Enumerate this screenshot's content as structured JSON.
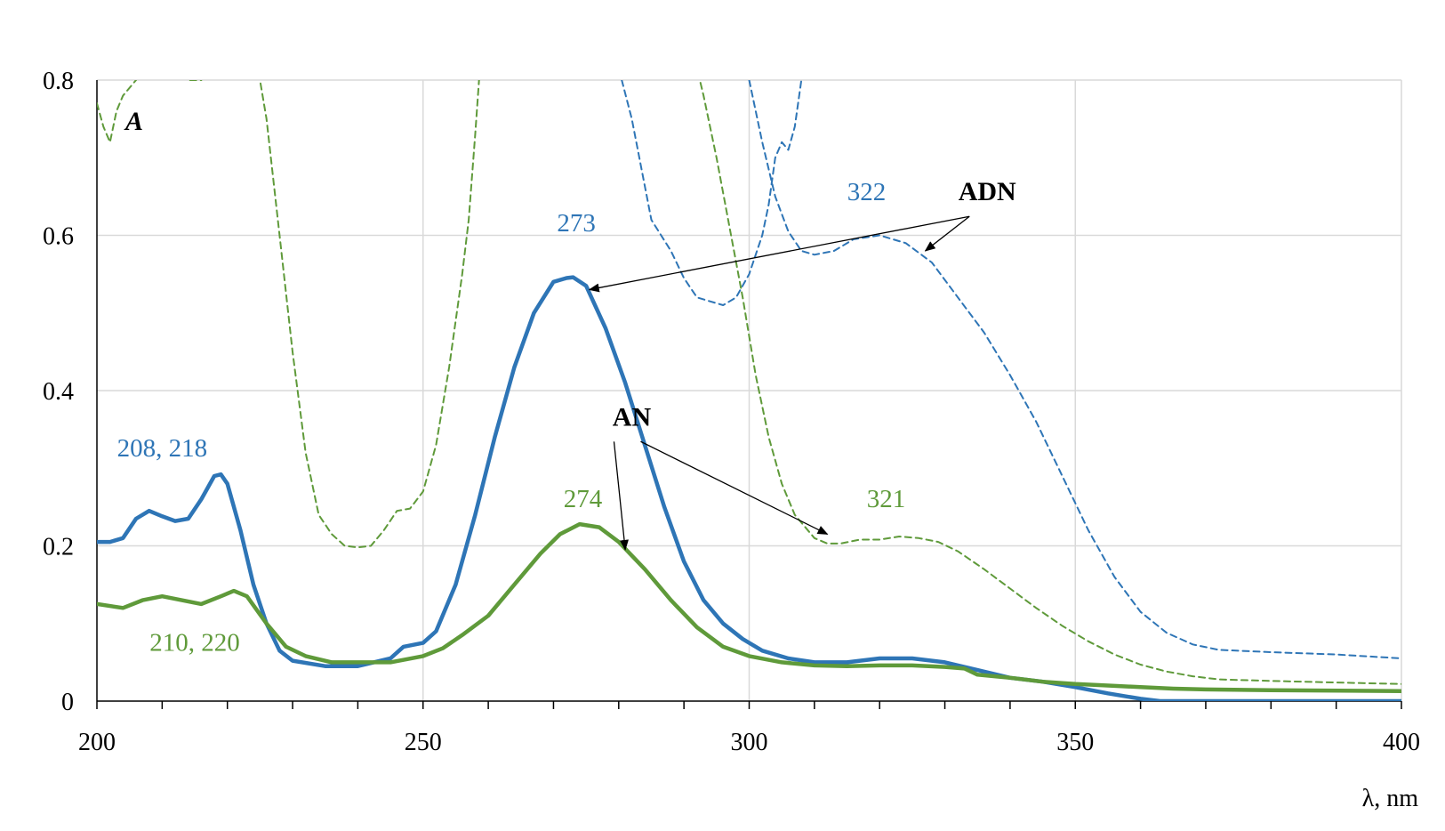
{
  "chart_data": {
    "type": "line",
    "title": "",
    "xlabel": "λ, nm",
    "ylabel": "A",
    "xlim": [
      200,
      400
    ],
    "ylim": [
      0,
      0.8
    ],
    "x_ticks": [
      200,
      250,
      300,
      350,
      400
    ],
    "y_ticks": [
      0,
      0.2,
      0.4,
      0.6,
      0.8
    ],
    "y_tick_labels": [
      "0",
      "0.2",
      "0.4",
      "0.6",
      "0.8"
    ],
    "grid": true,
    "colors": {
      "blue": "#2e75b6",
      "green": "#5f9a3a"
    },
    "series": [
      {
        "color": "#2e75b6",
        "style": "solid",
        "points": [
          [
            200,
            0.205
          ],
          [
            202,
            0.205
          ],
          [
            204,
            0.21
          ],
          [
            206,
            0.235
          ],
          [
            208,
            0.245
          ],
          [
            210,
            0.238
          ],
          [
            212,
            0.232
          ],
          [
            214,
            0.235
          ],
          [
            216,
            0.26
          ],
          [
            218,
            0.29
          ],
          [
            219,
            0.292
          ],
          [
            220,
            0.28
          ],
          [
            222,
            0.22
          ],
          [
            224,
            0.15
          ],
          [
            226,
            0.1
          ],
          [
            228,
            0.065
          ],
          [
            230,
            0.052
          ],
          [
            235,
            0.045
          ],
          [
            240,
            0.045
          ],
          [
            245,
            0.055
          ],
          [
            247,
            0.07
          ],
          [
            250,
            0.075
          ],
          [
            252,
            0.09
          ],
          [
            255,
            0.15
          ],
          [
            258,
            0.24
          ],
          [
            261,
            0.34
          ],
          [
            264,
            0.43
          ],
          [
            267,
            0.5
          ],
          [
            270,
            0.54
          ],
          [
            272,
            0.545
          ],
          [
            273,
            0.546
          ],
          [
            275,
            0.535
          ],
          [
            278,
            0.48
          ],
          [
            281,
            0.41
          ],
          [
            284,
            0.33
          ],
          [
            287,
            0.25
          ],
          [
            290,
            0.18
          ],
          [
            293,
            0.13
          ],
          [
            296,
            0.1
          ],
          [
            299,
            0.08
          ],
          [
            302,
            0.065
          ],
          [
            306,
            0.055
          ],
          [
            310,
            0.05
          ],
          [
            315,
            0.05
          ],
          [
            320,
            0.055
          ],
          [
            325,
            0.055
          ],
          [
            330,
            0.05
          ],
          [
            335,
            0.04
          ],
          [
            340,
            0.03
          ],
          [
            345,
            0.025
          ],
          [
            350,
            0.018
          ],
          [
            355,
            0.01
          ],
          [
            360,
            0.003
          ],
          [
            363,
            0.0
          ],
          [
            400,
            0.0
          ]
        ]
      },
      {
        "color": "#5f9a3a",
        "style": "solid",
        "points": [
          [
            200,
            0.125
          ],
          [
            204,
            0.12
          ],
          [
            207,
            0.13
          ],
          [
            210,
            0.135
          ],
          [
            213,
            0.13
          ],
          [
            216,
            0.125
          ],
          [
            219,
            0.135
          ],
          [
            221,
            0.142
          ],
          [
            223,
            0.135
          ],
          [
            226,
            0.1
          ],
          [
            229,
            0.07
          ],
          [
            232,
            0.058
          ],
          [
            236,
            0.05
          ],
          [
            240,
            0.05
          ],
          [
            245,
            0.05
          ],
          [
            250,
            0.058
          ],
          [
            253,
            0.068
          ],
          [
            256,
            0.085
          ],
          [
            260,
            0.11
          ],
          [
            264,
            0.15
          ],
          [
            268,
            0.19
          ],
          [
            271,
            0.215
          ],
          [
            274,
            0.228
          ],
          [
            277,
            0.224
          ],
          [
            280,
            0.205
          ],
          [
            284,
            0.17
          ],
          [
            288,
            0.13
          ],
          [
            292,
            0.095
          ],
          [
            296,
            0.07
          ],
          [
            300,
            0.058
          ],
          [
            305,
            0.05
          ],
          [
            310,
            0.046
          ],
          [
            315,
            0.045
          ],
          [
            320,
            0.046
          ],
          [
            325,
            0.046
          ],
          [
            330,
            0.044
          ],
          [
            333,
            0.042
          ],
          [
            335,
            0.034
          ],
          [
            340,
            0.03
          ],
          [
            345,
            0.025
          ],
          [
            350,
            0.022
          ],
          [
            355,
            0.02
          ],
          [
            360,
            0.018
          ],
          [
            365,
            0.016
          ],
          [
            370,
            0.015
          ],
          [
            380,
            0.014
          ],
          [
            400,
            0.013
          ]
        ]
      },
      {
        "color": "#2e75b6",
        "style": "dashed",
        "points": [
          [
            278,
            0.88
          ],
          [
            282,
            0.75
          ],
          [
            285,
            0.62
          ],
          [
            288,
            0.58
          ],
          [
            290,
            0.545
          ],
          [
            292,
            0.52
          ],
          [
            294,
            0.515
          ],
          [
            296,
            0.51
          ],
          [
            298,
            0.52
          ],
          [
            300,
            0.55
          ],
          [
            302,
            0.6
          ],
          [
            303,
            0.64
          ],
          [
            304,
            0.7
          ],
          [
            305,
            0.72
          ],
          [
            306,
            0.71
          ],
          [
            307,
            0.74
          ],
          [
            308,
            0.8
          ],
          [
            309,
            0.86
          ]
        ]
      },
      {
        "color": "#2e75b6",
        "style": "dashed",
        "points": [
          [
            300,
            0.8
          ],
          [
            302,
            0.72
          ],
          [
            304,
            0.65
          ],
          [
            306,
            0.605
          ],
          [
            308,
            0.58
          ],
          [
            310,
            0.575
          ],
          [
            313,
            0.58
          ],
          [
            316,
            0.595
          ],
          [
            320,
            0.6
          ],
          [
            324,
            0.59
          ],
          [
            328,
            0.565
          ],
          [
            332,
            0.52
          ],
          [
            336,
            0.475
          ],
          [
            340,
            0.42
          ],
          [
            344,
            0.36
          ],
          [
            348,
            0.29
          ],
          [
            352,
            0.22
          ],
          [
            356,
            0.16
          ],
          [
            360,
            0.115
          ],
          [
            364,
            0.088
          ],
          [
            368,
            0.073
          ],
          [
            372,
            0.066
          ],
          [
            380,
            0.063
          ],
          [
            390,
            0.06
          ],
          [
            400,
            0.055
          ]
        ]
      },
      {
        "color": "#5f9a3a",
        "style": "dashed",
        "points": [
          [
            200,
            0.77
          ],
          [
            201,
            0.74
          ],
          [
            202,
            0.72
          ],
          [
            203,
            0.76
          ],
          [
            204,
            0.78
          ],
          [
            206,
            0.8
          ],
          [
            207,
            0.83
          ]
        ]
      },
      {
        "color": "#5f9a3a",
        "style": "dashed",
        "points": [
          [
            212,
            0.85
          ],
          [
            214,
            0.8
          ],
          [
            216,
            0.8
          ],
          [
            217,
            0.82
          ]
        ]
      },
      {
        "color": "#5f9a3a",
        "style": "dashed",
        "points": [
          [
            224,
            0.85
          ],
          [
            226,
            0.75
          ],
          [
            228,
            0.6
          ],
          [
            230,
            0.45
          ],
          [
            232,
            0.32
          ],
          [
            234,
            0.24
          ],
          [
            236,
            0.215
          ],
          [
            238,
            0.2
          ],
          [
            240,
            0.198
          ],
          [
            242,
            0.2
          ],
          [
            244,
            0.22
          ],
          [
            246,
            0.245
          ],
          [
            248,
            0.248
          ],
          [
            250,
            0.27
          ],
          [
            252,
            0.33
          ],
          [
            254,
            0.43
          ],
          [
            256,
            0.55
          ],
          [
            257,
            0.62
          ],
          [
            258,
            0.73
          ],
          [
            259,
            0.85
          ]
        ]
      },
      {
        "color": "#5f9a3a",
        "style": "dashed",
        "points": [
          [
            291,
            0.85
          ],
          [
            293,
            0.78
          ],
          [
            295,
            0.7
          ],
          [
            297,
            0.61
          ],
          [
            299,
            0.52
          ],
          [
            301,
            0.42
          ],
          [
            303,
            0.34
          ],
          [
            305,
            0.28
          ],
          [
            307,
            0.24
          ],
          [
            310,
            0.21
          ],
          [
            312,
            0.203
          ],
          [
            314,
            0.203
          ],
          [
            317,
            0.208
          ],
          [
            320,
            0.208
          ],
          [
            323,
            0.212
          ],
          [
            326,
            0.21
          ],
          [
            329,
            0.205
          ],
          [
            332,
            0.193
          ],
          [
            336,
            0.17
          ],
          [
            340,
            0.145
          ],
          [
            344,
            0.12
          ],
          [
            348,
            0.097
          ],
          [
            352,
            0.077
          ],
          [
            356,
            0.06
          ],
          [
            360,
            0.047
          ],
          [
            364,
            0.038
          ],
          [
            368,
            0.032
          ],
          [
            372,
            0.028
          ],
          [
            380,
            0.026
          ],
          [
            390,
            0.024
          ],
          [
            400,
            0.022
          ]
        ]
      }
    ],
    "peak_labels": [
      {
        "text": "208, 218",
        "x": 210,
        "y": 0.315,
        "color": "#2e75b6"
      },
      {
        "text": "210, 220",
        "x": 215,
        "y": 0.065,
        "color": "#5f9a3a"
      },
      {
        "text": "273",
        "x": 273.5,
        "y": 0.605,
        "color": "#2e75b6"
      },
      {
        "text": "274",
        "x": 274.5,
        "y": 0.25,
        "color": "#5f9a3a"
      },
      {
        "text": "322",
        "x": 318,
        "y": 0.645,
        "color": "#2e75b6"
      },
      {
        "text": "321",
        "x": 321,
        "y": 0.25,
        "color": "#5f9a3a"
      }
    ],
    "annotations": [
      {
        "text": "ADN",
        "x": 336.5,
        "y": 0.645,
        "targets": [
          [
            275.5,
            0.53
          ],
          [
            327,
            0.58
          ]
        ]
      },
      {
        "text": "AN",
        "x": 282,
        "y": 0.355,
        "targets": [
          [
            281,
            0.195
          ],
          [
            312,
            0.215
          ]
        ]
      }
    ]
  }
}
